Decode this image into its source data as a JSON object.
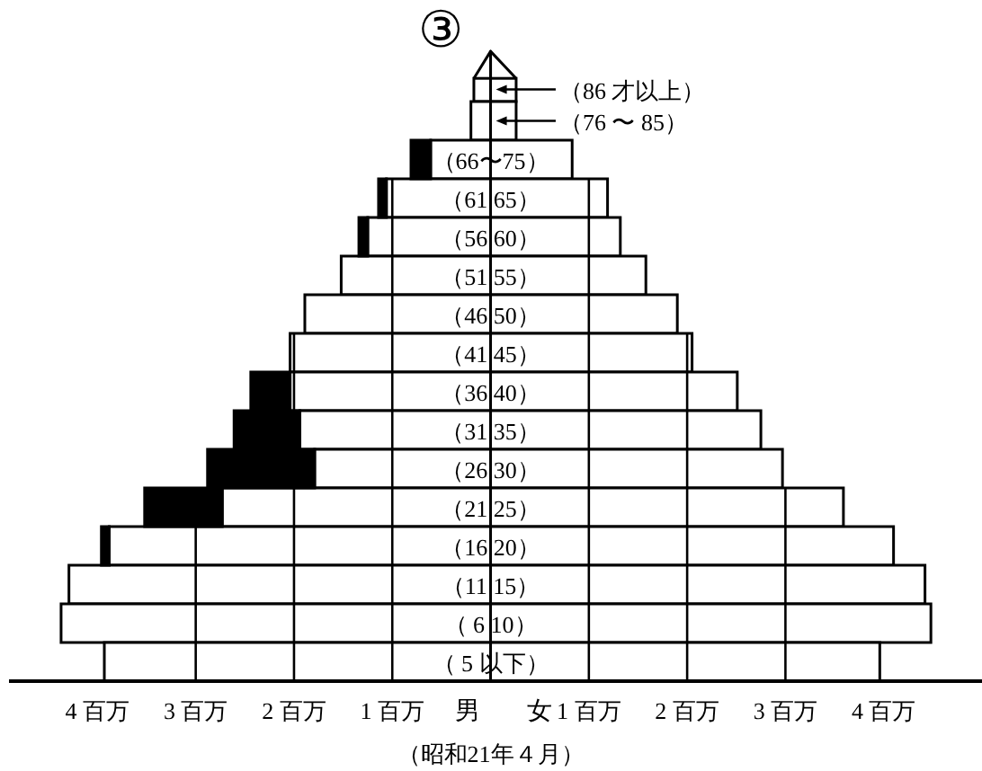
{
  "chart_data": {
    "type": "bar",
    "orientation": "horizontal",
    "stacked": true,
    "title": "③",
    "categories": [
      "（86 才以上）",
      "（76 〜 85）",
      "（66〜75）",
      "（61 65）",
      "（56 60）",
      "（51 55）",
      "（46 50）",
      "（41 45）",
      "（36 40）",
      "（31 35）",
      "（26 30）",
      "（21 25）",
      "（16 20）",
      "（11 15）",
      "（ 6 10）",
      "（ 5 以下）"
    ],
    "series": [
      {
        "name": "男",
        "color": "#ffffff",
        "values": [
          -0.17,
          -0.2,
          -0.61,
          -1.06,
          -1.25,
          -1.52,
          -1.89,
          -2.04,
          -2.04,
          -1.94,
          -1.79,
          -2.73,
          -3.88,
          -4.29,
          -4.37,
          -3.93
        ]
      },
      {
        "color": "#000000",
        "values": [
          null,
          null,
          -0.2,
          -0.08,
          -0.09,
          null,
          null,
          null,
          -0.4,
          -0.67,
          -1.09,
          -0.79,
          -0.08,
          null,
          null,
          null
        ]
      },
      {
        "name": "女",
        "color": "#ffffff",
        "values": [
          0.26,
          0.26,
          0.83,
          1.19,
          1.32,
          1.58,
          1.9,
          2.05,
          2.51,
          2.75,
          2.97,
          3.59,
          4.1,
          4.42,
          4.48,
          3.96
        ]
      }
    ],
    "xlim": [
      -4.9,
      5.0
    ],
    "xticks": [
      {
        "value": -4,
        "label": "4 百万"
      },
      {
        "value": -3,
        "label": "3 百万"
      },
      {
        "value": -2,
        "label": "2 百万"
      },
      {
        "value": -1,
        "label": "1 百万"
      },
      {
        "value": 1,
        "label": "1 百万"
      },
      {
        "value": 2,
        "label": "2 百万"
      },
      {
        "value": 3,
        "label": "3 百万"
      },
      {
        "value": 4,
        "label": "4 百万"
      }
    ],
    "grid": "x",
    "legend": false,
    "annotations": [
      "（昭和21年４月）"
    ]
  }
}
